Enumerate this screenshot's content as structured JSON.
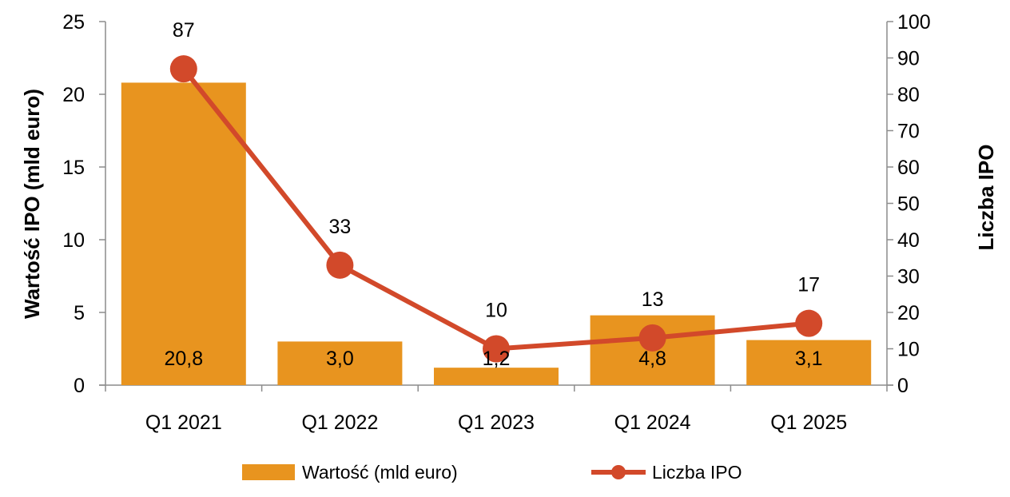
{
  "chart_data": {
    "type": "bar",
    "categories": [
      "Q1 2021",
      "Q1 2022",
      "Q1 2023",
      "Q1 2024",
      "Q1 2025"
    ],
    "series": [
      {
        "name": "Wartość (mld euro)",
        "type": "bar",
        "axis": "left",
        "values": [
          20.8,
          3.0,
          1.2,
          4.8,
          3.1
        ],
        "labels": [
          "20,8",
          "3,0",
          "1,2",
          "4,8",
          "3,1"
        ],
        "color": "#E8941F"
      },
      {
        "name": "Liczba IPO",
        "type": "line",
        "axis": "right",
        "values": [
          87,
          33,
          10,
          13,
          17
        ],
        "labels": [
          "87",
          "33",
          "10",
          "13",
          "17"
        ],
        "color": "#D2492A"
      }
    ],
    "ylabel": "Wartość IPO (mld euro)",
    "y2label": "Liczba IPO",
    "ylim": [
      0,
      25
    ],
    "y2lim": [
      0,
      100
    ],
    "yticks": [
      "0",
      "5",
      "10",
      "15",
      "20",
      "25"
    ],
    "y2ticks": [
      "0",
      "10",
      "20",
      "30",
      "40",
      "50",
      "60",
      "70",
      "80",
      "90",
      "100"
    ],
    "grid": false,
    "legend_position": "bottom"
  }
}
